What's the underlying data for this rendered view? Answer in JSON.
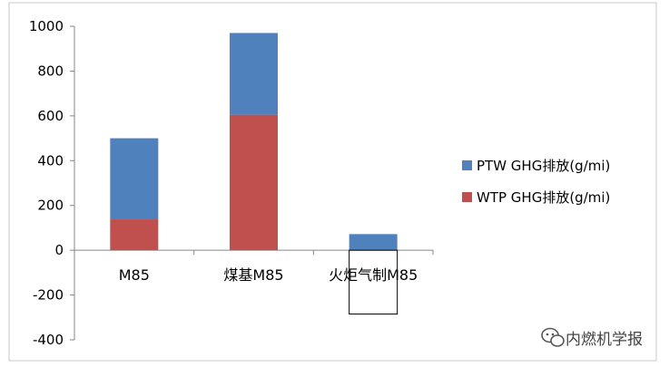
{
  "chart_data": {
    "type": "bar",
    "stacked": true,
    "categories": [
      "M85",
      "煤基M85",
      "火炬气制M85"
    ],
    "series": [
      {
        "name": "WTP GHG排放(g/mi)",
        "color": "#c0504d",
        "values": [
          138,
          605,
          0
        ]
      },
      {
        "name": "PTW GHG排放(g/mi)",
        "color": "#4f81bd",
        "values": [
          362,
          365,
          72
        ]
      }
    ],
    "negative_bar": {
      "category": "火炬气制M85",
      "value": -285,
      "fill": "none",
      "stroke": "#000000"
    },
    "ylim": [
      -400,
      1000
    ],
    "yticks": [
      -400,
      -200,
      0,
      200,
      400,
      600,
      800,
      1000
    ],
    "legend_position": "right",
    "grid": false
  },
  "legend": {
    "ptw_label": "PTW GHG排放(g/mi)",
    "wtp_label": "WTP GHG排放(g/mi)"
  },
  "watermark": {
    "text": "内燃机学报",
    "icon": "wechat-icon"
  }
}
